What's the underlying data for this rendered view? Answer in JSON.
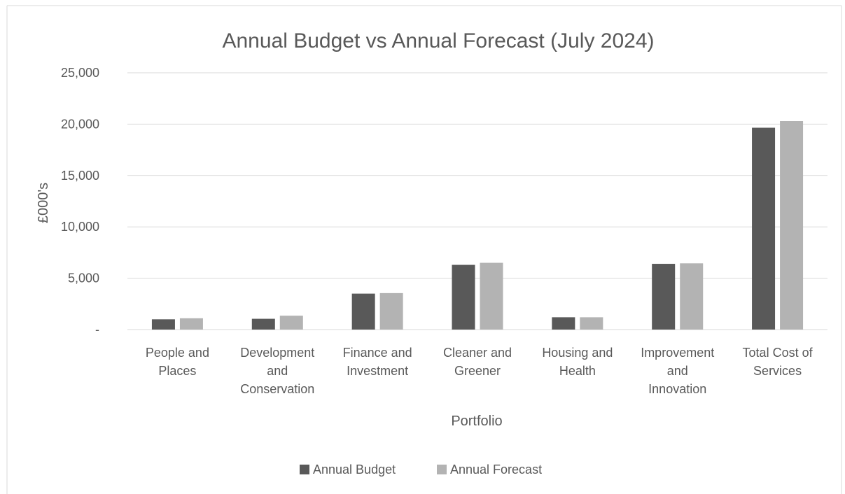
{
  "chart_data": {
    "type": "bar",
    "title": "Annual Budget vs  Annual Forecast (July 2024)",
    "xlabel": "Portfolio",
    "ylabel": "£000's",
    "categories": [
      [
        "People and",
        "Places"
      ],
      [
        "Development",
        "and",
        "Conservation"
      ],
      [
        "Finance and",
        "Investment"
      ],
      [
        "Cleaner and",
        "Greener"
      ],
      [
        "Housing and",
        "Health"
      ],
      [
        "Improvement",
        "and",
        "Innovation"
      ],
      [
        "Total Cost of",
        "Services"
      ]
    ],
    "series": [
      {
        "name": "Annual Budget",
        "color": "#595959",
        "values": [
          1000,
          1050,
          3500,
          6300,
          1200,
          6400,
          19650
        ]
      },
      {
        "name": "Annual Forecast",
        "color": "#b3b3b3",
        "values": [
          1100,
          1350,
          3550,
          6500,
          1200,
          6450,
          20300
        ]
      }
    ],
    "ylim": [
      0,
      25000
    ],
    "yticks": [
      {
        "value": 0,
        "label": "-"
      },
      {
        "value": 5000,
        "label": "5,000"
      },
      {
        "value": 10000,
        "label": "10,000"
      },
      {
        "value": 15000,
        "label": "15,000"
      },
      {
        "value": 20000,
        "label": "20,000"
      },
      {
        "value": 25000,
        "label": "25,000"
      }
    ],
    "grid": true,
    "legend": "bottom"
  }
}
